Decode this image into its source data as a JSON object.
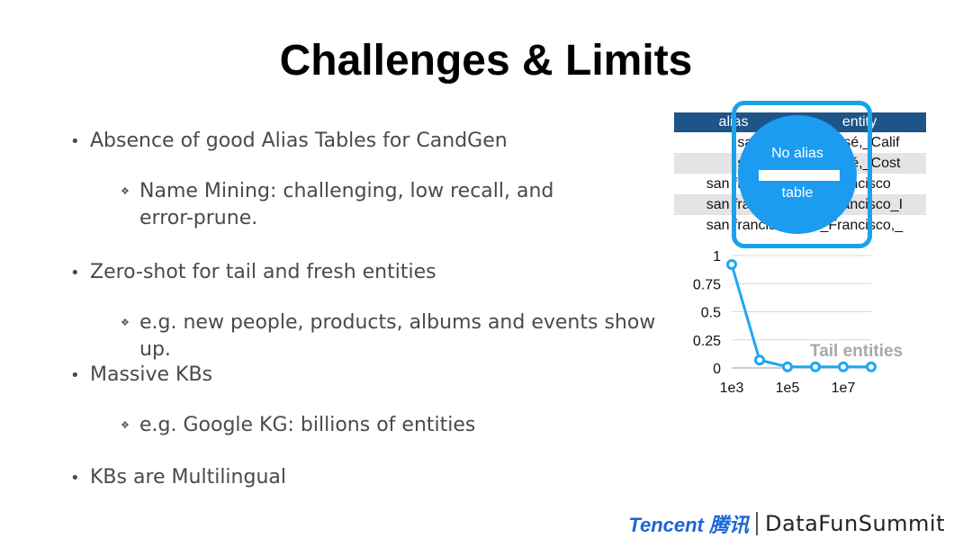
{
  "title": "Challenges & Limits",
  "bullets": [
    {
      "text": "Absence of good Alias Tables for CandGen",
      "sub": [
        {
          "lines": [
            "Name Mining: challenging, low recall, and",
            "error-prune."
          ]
        }
      ]
    },
    {
      "text": "Zero-shot for tail and fresh entities",
      "sub": [
        {
          "lines": [
            "e.g. new people, products, albums and events show up."
          ]
        }
      ]
    },
    {
      "text": "Massive KBs",
      "sub": [
        {
          "lines": [
            "e.g. Google KG: billions of entities"
          ]
        }
      ]
    },
    {
      "text": "KBs are Multilingual",
      "sub": []
    }
  ],
  "alias_table": {
    "headers": [
      "alias",
      "entity"
    ],
    "rows": [
      [
        "san jose",
        "San_José,_Calif"
      ],
      [
        "san jose",
        "San_José,_Cost"
      ],
      [
        "san francisco",
        "San_Francisco"
      ],
      [
        "san francisco",
        "San_Francisco_I"
      ],
      [
        "san francisco",
        "San_Francisco,_"
      ]
    ],
    "header_color": "#1f5488",
    "highlight_text": [
      "No alias",
      "table"
    ],
    "highlight_color": "#1c9cf0"
  },
  "chart_data": {
    "type": "line",
    "x": [
      "1e3",
      "3e3",
      "1e5",
      "1e6",
      "1e7",
      "1e8"
    ],
    "y": [
      0.92,
      0.07,
      0.01,
      0.01,
      0.01,
      0.01
    ],
    "xticks": [
      "1e3",
      "1e5",
      "1e7"
    ],
    "yticks": [
      "0",
      "0.25",
      "0.5",
      "0.75",
      "1"
    ],
    "ylim": [
      0,
      1
    ],
    "annotation": "Tail entities",
    "line_color": "#1ea7f0",
    "grid": true
  },
  "footer": {
    "tencent": "Tencent 腾讯",
    "brand": "DataFunSummit"
  }
}
